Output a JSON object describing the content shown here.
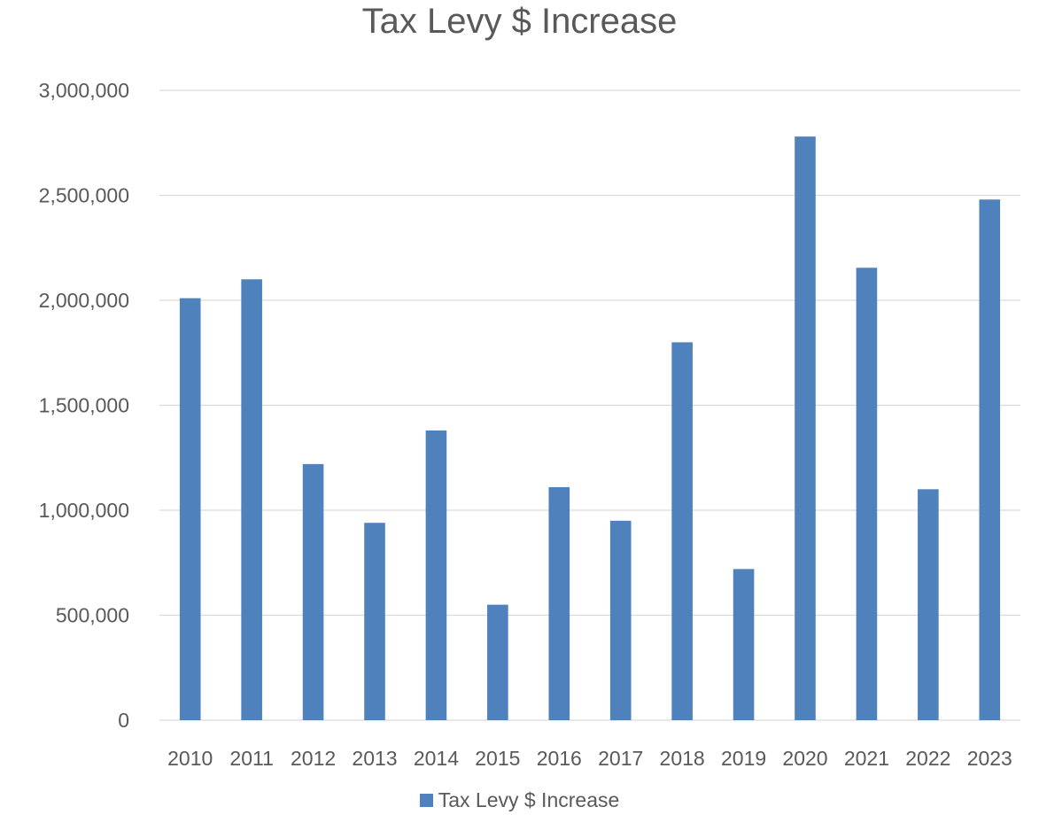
{
  "chart_data": {
    "type": "bar",
    "title": "Tax Levy $ Increase",
    "xlabel": "",
    "ylabel": "",
    "categories": [
      "2010",
      "2011",
      "2012",
      "2013",
      "2014",
      "2015",
      "2016",
      "2017",
      "2018",
      "2019",
      "2020",
      "2021",
      "2022",
      "2023"
    ],
    "series": [
      {
        "name": "Tax Levy $ Increase",
        "color": "#4F81BD",
        "values": [
          2010000,
          2100000,
          1220000,
          940000,
          1380000,
          550000,
          1110000,
          950000,
          1800000,
          720000,
          2780000,
          2155000,
          1100000,
          2480000
        ]
      }
    ],
    "ylim": [
      0,
      3000000
    ],
    "yticks": [
      0,
      500000,
      1000000,
      1500000,
      2000000,
      2500000,
      3000000
    ],
    "ytick_labels": [
      "0",
      "500,000",
      "1,000,000",
      "1,500,000",
      "2,000,000",
      "2,500,000",
      "3,000,000"
    ],
    "grid": true,
    "gridline_color": "#D9D9D9",
    "legend_position": "bottom"
  }
}
